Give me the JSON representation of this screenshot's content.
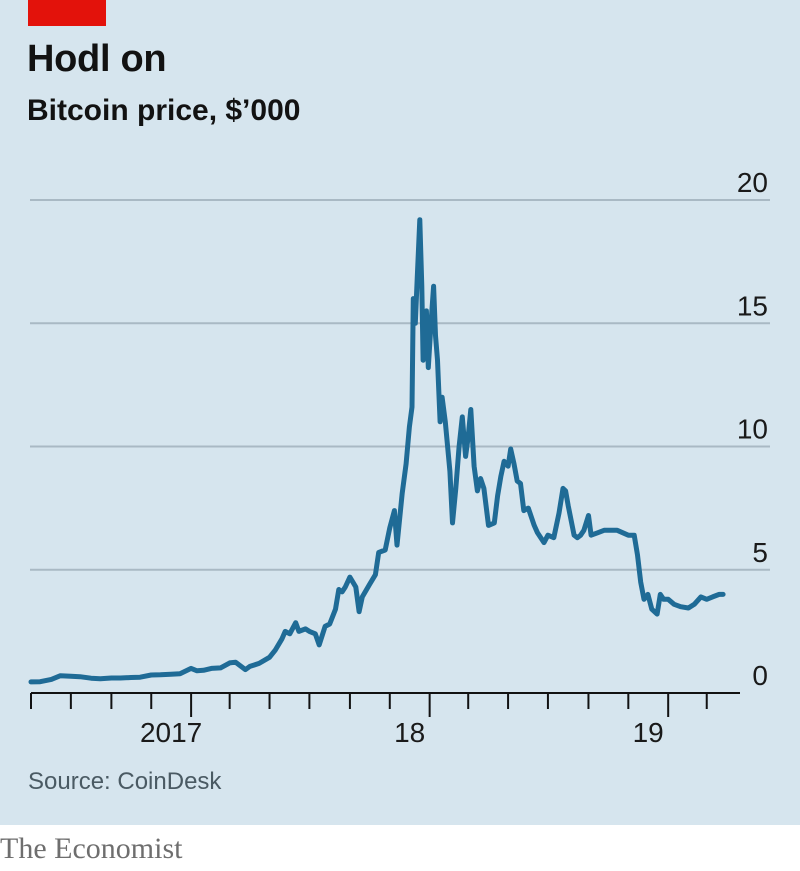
{
  "title": "Hodl on",
  "subtitle": "Bitcoin price, $’000",
  "source": "Source: CoinDesk",
  "brand": "The Economist",
  "colors": {
    "line": "#1f6b96",
    "grid": "#a9b9c4",
    "accent": "#e3120b",
    "panel": "#d6e5ee"
  },
  "chart_data": {
    "type": "line",
    "title": "Hodl on",
    "subtitle": "Bitcoin price, $’000",
    "xlabel": "",
    "ylabel": "",
    "ylim": [
      0,
      20
    ],
    "yticks": [
      0,
      5,
      10,
      15,
      20
    ],
    "grid": true,
    "y_axis_side": "right",
    "x_range": [
      "2016-05-01",
      "2019-04-01"
    ],
    "x_tick_labels": [
      {
        "label": "2017",
        "date": "2017-01-01"
      },
      {
        "label": "18",
        "date": "2018-01-01"
      },
      {
        "label": "19",
        "date": "2019-01-01"
      }
    ],
    "series": [
      {
        "values": [
          [
            "2016-05-01",
            0.45
          ],
          [
            "2016-05-15",
            0.46
          ],
          [
            "2016-06-01",
            0.55
          ],
          [
            "2016-06-15",
            0.7
          ],
          [
            "2016-07-01",
            0.68
          ],
          [
            "2016-07-15",
            0.66
          ],
          [
            "2016-08-01",
            0.6
          ],
          [
            "2016-08-15",
            0.58
          ],
          [
            "2016-09-01",
            0.61
          ],
          [
            "2016-09-15",
            0.61
          ],
          [
            "2016-10-01",
            0.63
          ],
          [
            "2016-10-15",
            0.64
          ],
          [
            "2016-11-01",
            0.73
          ],
          [
            "2016-11-15",
            0.74
          ],
          [
            "2016-12-01",
            0.76
          ],
          [
            "2016-12-15",
            0.78
          ],
          [
            "2017-01-01",
            1.0
          ],
          [
            "2017-01-10",
            0.9
          ],
          [
            "2017-01-20",
            0.92
          ],
          [
            "2017-02-01",
            1.0
          ],
          [
            "2017-02-15",
            1.02
          ],
          [
            "2017-03-01",
            1.22
          ],
          [
            "2017-03-10",
            1.25
          ],
          [
            "2017-03-25",
            0.95
          ],
          [
            "2017-04-01",
            1.08
          ],
          [
            "2017-04-15",
            1.2
          ],
          [
            "2017-05-01",
            1.45
          ],
          [
            "2017-05-10",
            1.75
          ],
          [
            "2017-05-20",
            2.2
          ],
          [
            "2017-05-25",
            2.5
          ],
          [
            "2017-06-01",
            2.4
          ],
          [
            "2017-06-10",
            2.85
          ],
          [
            "2017-06-15",
            2.5
          ],
          [
            "2017-06-25",
            2.6
          ],
          [
            "2017-07-01",
            2.5
          ],
          [
            "2017-07-10",
            2.4
          ],
          [
            "2017-07-16",
            1.95
          ],
          [
            "2017-07-25",
            2.7
          ],
          [
            "2017-08-01",
            2.8
          ],
          [
            "2017-08-10",
            3.4
          ],
          [
            "2017-08-15",
            4.2
          ],
          [
            "2017-08-20",
            4.1
          ],
          [
            "2017-08-25",
            4.3
          ],
          [
            "2017-09-01",
            4.7
          ],
          [
            "2017-09-10",
            4.3
          ],
          [
            "2017-09-15",
            3.3
          ],
          [
            "2017-09-20",
            3.9
          ],
          [
            "2017-10-01",
            4.4
          ],
          [
            "2017-10-10",
            4.8
          ],
          [
            "2017-10-15",
            5.7
          ],
          [
            "2017-10-25",
            5.8
          ],
          [
            "2017-11-01",
            6.7
          ],
          [
            "2017-11-08",
            7.4
          ],
          [
            "2017-11-12",
            6.0
          ],
          [
            "2017-11-20",
            8.1
          ],
          [
            "2017-11-26",
            9.3
          ],
          [
            "2017-12-01",
            10.8
          ],
          [
            "2017-12-05",
            11.6
          ],
          [
            "2017-12-07",
            16.0
          ],
          [
            "2017-12-10",
            15.0
          ],
          [
            "2017-12-13",
            16.8
          ],
          [
            "2017-12-17",
            19.2
          ],
          [
            "2017-12-20",
            16.5
          ],
          [
            "2017-12-22",
            13.5
          ],
          [
            "2017-12-24",
            14.0
          ],
          [
            "2017-12-27",
            15.5
          ],
          [
            "2017-12-30",
            13.2
          ],
          [
            "2018-01-03",
            15.0
          ],
          [
            "2018-01-07",
            16.5
          ],
          [
            "2018-01-10",
            14.5
          ],
          [
            "2018-01-13",
            13.5
          ],
          [
            "2018-01-17",
            11.0
          ],
          [
            "2018-01-20",
            12.0
          ],
          [
            "2018-01-25",
            11.0
          ],
          [
            "2018-02-01",
            9.0
          ],
          [
            "2018-02-05",
            6.9
          ],
          [
            "2018-02-10",
            8.3
          ],
          [
            "2018-02-15",
            10.0
          ],
          [
            "2018-02-20",
            11.2
          ],
          [
            "2018-02-25",
            9.6
          ],
          [
            "2018-03-01",
            10.4
          ],
          [
            "2018-03-05",
            11.5
          ],
          [
            "2018-03-10",
            9.2
          ],
          [
            "2018-03-15",
            8.2
          ],
          [
            "2018-03-20",
            8.7
          ],
          [
            "2018-03-25",
            8.3
          ],
          [
            "2018-04-01",
            6.8
          ],
          [
            "2018-04-10",
            6.9
          ],
          [
            "2018-04-15",
            8.0
          ],
          [
            "2018-04-20",
            8.8
          ],
          [
            "2018-04-25",
            9.4
          ],
          [
            "2018-05-01",
            9.2
          ],
          [
            "2018-05-05",
            9.9
          ],
          [
            "2018-05-10",
            9.3
          ],
          [
            "2018-05-15",
            8.6
          ],
          [
            "2018-05-20",
            8.5
          ],
          [
            "2018-05-25",
            7.4
          ],
          [
            "2018-06-01",
            7.5
          ],
          [
            "2018-06-10",
            6.8
          ],
          [
            "2018-06-15",
            6.5
          ],
          [
            "2018-06-25",
            6.1
          ],
          [
            "2018-07-01",
            6.4
          ],
          [
            "2018-07-10",
            6.3
          ],
          [
            "2018-07-18",
            7.3
          ],
          [
            "2018-07-24",
            8.3
          ],
          [
            "2018-07-28",
            8.2
          ],
          [
            "2018-08-01",
            7.6
          ],
          [
            "2018-08-10",
            6.4
          ],
          [
            "2018-08-15",
            6.3
          ],
          [
            "2018-08-20",
            6.4
          ],
          [
            "2018-08-25",
            6.6
          ],
          [
            "2018-09-01",
            7.2
          ],
          [
            "2018-09-05",
            6.4
          ],
          [
            "2018-09-15",
            6.5
          ],
          [
            "2018-09-25",
            6.6
          ],
          [
            "2018-10-01",
            6.6
          ],
          [
            "2018-10-15",
            6.6
          ],
          [
            "2018-11-01",
            6.4
          ],
          [
            "2018-11-10",
            6.4
          ],
          [
            "2018-11-15",
            5.6
          ],
          [
            "2018-11-20",
            4.5
          ],
          [
            "2018-11-25",
            3.8
          ],
          [
            "2018-12-01",
            4.0
          ],
          [
            "2018-12-07",
            3.4
          ],
          [
            "2018-12-15",
            3.2
          ],
          [
            "2018-12-20",
            4.0
          ],
          [
            "2018-12-25",
            3.8
          ],
          [
            "2019-01-01",
            3.8
          ],
          [
            "2019-01-10",
            3.6
          ],
          [
            "2019-01-20",
            3.5
          ],
          [
            "2019-02-01",
            3.45
          ],
          [
            "2019-02-10",
            3.6
          ],
          [
            "2019-02-20",
            3.9
          ],
          [
            "2019-03-01",
            3.8
          ],
          [
            "2019-03-10",
            3.9
          ],
          [
            "2019-03-20",
            4.0
          ],
          [
            "2019-03-26",
            4.0
          ]
        ]
      }
    ]
  }
}
